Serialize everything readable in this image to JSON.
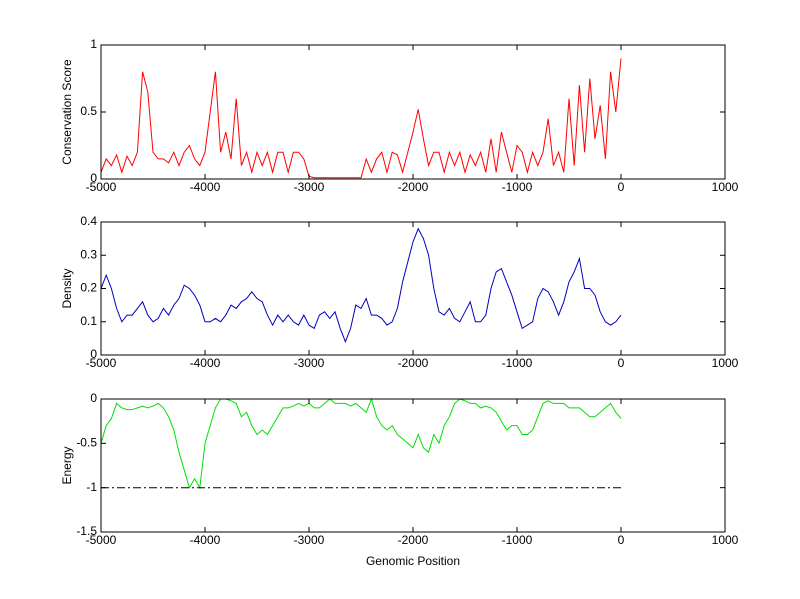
{
  "chart_data": [
    {
      "type": "line",
      "ylabel": "Conservation Score",
      "x": [
        -5000,
        -4950,
        -4900,
        -4850,
        -4800,
        -4750,
        -4700,
        -4650,
        -4600,
        -4550,
        -4500,
        -4450,
        -4400,
        -4350,
        -4300,
        -4250,
        -4200,
        -4150,
        -4100,
        -4050,
        -4000,
        -3950,
        -3900,
        -3850,
        -3800,
        -3750,
        -3700,
        -3650,
        -3600,
        -3550,
        -3500,
        -3450,
        -3400,
        -3350,
        -3300,
        -3250,
        -3200,
        -3150,
        -3100,
        -3050,
        -3000,
        -2950,
        -2900,
        -2850,
        -2800,
        -2750,
        -2700,
        -2650,
        -2600,
        -2550,
        -2500,
        -2450,
        -2400,
        -2350,
        -2300,
        -2250,
        -2200,
        -2150,
        -2100,
        -2050,
        -2000,
        -1950,
        -1900,
        -1850,
        -1800,
        -1750,
        -1700,
        -1650,
        -1600,
        -1550,
        -1500,
        -1450,
        -1400,
        -1350,
        -1300,
        -1250,
        -1200,
        -1150,
        -1100,
        -1050,
        -1000,
        -950,
        -900,
        -850,
        -800,
        -750,
        -700,
        -650,
        -600,
        -550,
        -500,
        -450,
        -400,
        -350,
        -300,
        -250,
        -200,
        -150,
        -100,
        -50,
        0
      ],
      "series": [
        {
          "color": "#ff0000",
          "values": [
            0.05,
            0.15,
            0.1,
            0.18,
            0.05,
            0.17,
            0.1,
            0.2,
            0.8,
            0.65,
            0.2,
            0.15,
            0.15,
            0.12,
            0.2,
            0.1,
            0.2,
            0.25,
            0.15,
            0.1,
            0.2,
            0.5,
            0.8,
            0.2,
            0.35,
            0.15,
            0.6,
            0.1,
            0.2,
            0.05,
            0.2,
            0.1,
            0.2,
            0.05,
            0.2,
            0.2,
            0.05,
            0.2,
            0.2,
            0.15,
            0.02,
            0.01,
            0.01,
            0.01,
            0.01,
            0.01,
            0.01,
            0.01,
            0.01,
            0.01,
            0.01,
            0.15,
            0.05,
            0.15,
            0.2,
            0.05,
            0.2,
            0.18,
            0.05,
            0.2,
            0.35,
            0.52,
            0.3,
            0.1,
            0.2,
            0.2,
            0.05,
            0.2,
            0.1,
            0.2,
            0.05,
            0.18,
            0.1,
            0.2,
            0.05,
            0.3,
            0.05,
            0.35,
            0.2,
            0.05,
            0.25,
            0.2,
            0.05,
            0.2,
            0.1,
            0.2,
            0.45,
            0.1,
            0.2,
            0.05,
            0.6,
            0.1,
            0.7,
            0.2,
            0.75,
            0.3,
            0.55,
            0.15,
            0.8,
            0.5,
            0.9
          ]
        }
      ],
      "xlim": [
        -5000,
        1000
      ],
      "xticks": [
        -5000,
        -4000,
        -3000,
        -2000,
        -1000,
        0,
        1000
      ],
      "ylim": [
        0,
        1
      ],
      "yticks": [
        0,
        0.5,
        1
      ]
    },
    {
      "type": "line",
      "ylabel": "Density",
      "x": [
        -5000,
        -4950,
        -4900,
        -4850,
        -4800,
        -4750,
        -4700,
        -4650,
        -4600,
        -4550,
        -4500,
        -4450,
        -4400,
        -4350,
        -4300,
        -4250,
        -4200,
        -4150,
        -4100,
        -4050,
        -4000,
        -3950,
        -3900,
        -3850,
        -3800,
        -3750,
        -3700,
        -3650,
        -3600,
        -3550,
        -3500,
        -3450,
        -3400,
        -3350,
        -3300,
        -3250,
        -3200,
        -3150,
        -3100,
        -3050,
        -3000,
        -2950,
        -2900,
        -2850,
        -2800,
        -2750,
        -2700,
        -2650,
        -2600,
        -2550,
        -2500,
        -2450,
        -2400,
        -2350,
        -2300,
        -2250,
        -2200,
        -2150,
        -2100,
        -2050,
        -2000,
        -1950,
        -1900,
        -1850,
        -1800,
        -1750,
        -1700,
        -1650,
        -1600,
        -1550,
        -1500,
        -1450,
        -1400,
        -1350,
        -1300,
        -1250,
        -1200,
        -1150,
        -1100,
        -1050,
        -1000,
        -950,
        -900,
        -850,
        -800,
        -750,
        -700,
        -650,
        -600,
        -550,
        -500,
        -450,
        -400,
        -350,
        -300,
        -250,
        -200,
        -150,
        -100,
        -50,
        0
      ],
      "series": [
        {
          "color": "#0000c0",
          "values": [
            0.2,
            0.24,
            0.2,
            0.14,
            0.1,
            0.12,
            0.12,
            0.14,
            0.16,
            0.12,
            0.1,
            0.11,
            0.14,
            0.12,
            0.15,
            0.17,
            0.21,
            0.2,
            0.18,
            0.15,
            0.1,
            0.1,
            0.11,
            0.1,
            0.12,
            0.15,
            0.14,
            0.16,
            0.17,
            0.19,
            0.17,
            0.16,
            0.12,
            0.09,
            0.12,
            0.1,
            0.12,
            0.1,
            0.09,
            0.12,
            0.09,
            0.08,
            0.12,
            0.13,
            0.11,
            0.13,
            0.08,
            0.04,
            0.08,
            0.15,
            0.14,
            0.17,
            0.12,
            0.12,
            0.11,
            0.09,
            0.1,
            0.14,
            0.22,
            0.28,
            0.34,
            0.38,
            0.35,
            0.3,
            0.2,
            0.13,
            0.12,
            0.14,
            0.11,
            0.1,
            0.13,
            0.16,
            0.1,
            0.1,
            0.12,
            0.2,
            0.25,
            0.26,
            0.22,
            0.18,
            0.13,
            0.08,
            0.09,
            0.1,
            0.17,
            0.2,
            0.19,
            0.16,
            0.12,
            0.16,
            0.22,
            0.25,
            0.29,
            0.2,
            0.2,
            0.18,
            0.13,
            0.1,
            0.09,
            0.1,
            0.12
          ]
        }
      ],
      "xlim": [
        -5000,
        1000
      ],
      "xticks": [
        -5000,
        -4000,
        -3000,
        -2000,
        -1000,
        0,
        1000
      ],
      "ylim": [
        0,
        0.4
      ],
      "yticks": [
        0,
        0.1,
        0.2,
        0.3,
        0.4
      ]
    },
    {
      "type": "line",
      "ylabel": "Energy",
      "xlabel": "Genomic Position",
      "x": [
        -5000,
        -4950,
        -4900,
        -4850,
        -4800,
        -4750,
        -4700,
        -4650,
        -4600,
        -4550,
        -4500,
        -4450,
        -4400,
        -4350,
        -4300,
        -4250,
        -4200,
        -4150,
        -4100,
        -4050,
        -4000,
        -3950,
        -3900,
        -3850,
        -3800,
        -3750,
        -3700,
        -3650,
        -3600,
        -3550,
        -3500,
        -3450,
        -3400,
        -3350,
        -3300,
        -3250,
        -3200,
        -3150,
        -3100,
        -3050,
        -3000,
        -2950,
        -2900,
        -2850,
        -2800,
        -2750,
        -2700,
        -2650,
        -2600,
        -2550,
        -2500,
        -2450,
        -2400,
        -2350,
        -2300,
        -2250,
        -2200,
        -2150,
        -2100,
        -2050,
        -2000,
        -1950,
        -1900,
        -1850,
        -1800,
        -1750,
        -1700,
        -1650,
        -1600,
        -1550,
        -1500,
        -1450,
        -1400,
        -1350,
        -1300,
        -1250,
        -1200,
        -1150,
        -1100,
        -1050,
        -1000,
        -950,
        -900,
        -850,
        -800,
        -750,
        -700,
        -650,
        -600,
        -550,
        -500,
        -450,
        -400,
        -350,
        -300,
        -250,
        -200,
        -150,
        -100,
        -50,
        0
      ],
      "series": [
        {
          "color": "#00e000",
          "values": [
            -0.5,
            -0.3,
            -0.22,
            -0.05,
            -0.1,
            -0.12,
            -0.12,
            -0.1,
            -0.08,
            -0.1,
            -0.08,
            -0.05,
            -0.1,
            -0.2,
            -0.35,
            -0.6,
            -0.8,
            -1,
            -0.9,
            -1,
            -0.5,
            -0.3,
            -0.1,
            0,
            0,
            -0.02,
            -0.05,
            -0.2,
            -0.15,
            -0.3,
            -0.4,
            -0.35,
            -0.4,
            -0.3,
            -0.2,
            -0.1,
            -0.1,
            -0.08,
            -0.05,
            -0.08,
            -0.05,
            -0.1,
            -0.1,
            -0.05,
            0,
            -0.05,
            -0.05,
            -0.05,
            -0.08,
            -0.05,
            -0.1,
            -0.15,
            0,
            -0.2,
            -0.3,
            -0.35,
            -0.3,
            -0.4,
            -0.45,
            -0.5,
            -0.55,
            -0.4,
            -0.55,
            -0.6,
            -0.4,
            -0.5,
            -0.3,
            -0.2,
            -0.05,
            0,
            -0.02,
            -0.05,
            -0.05,
            -0.1,
            -0.08,
            -0.1,
            -0.15,
            -0.25,
            -0.35,
            -0.3,
            -0.3,
            -0.4,
            -0.4,
            -0.35,
            -0.2,
            -0.05,
            -0.02,
            -0.05,
            -0.05,
            -0.05,
            -0.1,
            -0.1,
            -0.1,
            -0.15,
            -0.2,
            -0.2,
            -0.15,
            -0.1,
            -0.05,
            -0.15,
            -0.22
          ]
        },
        {
          "color": "#000000",
          "dash": "dash-dot",
          "x": [
            -5000,
            0
          ],
          "values": [
            -1,
            -1
          ]
        }
      ],
      "xlim": [
        -5000,
        1000
      ],
      "xticks": [
        -5000,
        -4000,
        -3000,
        -2000,
        -1000,
        0,
        1000
      ],
      "ylim": [
        -1.5,
        0
      ],
      "yticks": [
        -1.5,
        -1,
        -0.5,
        0
      ]
    }
  ]
}
